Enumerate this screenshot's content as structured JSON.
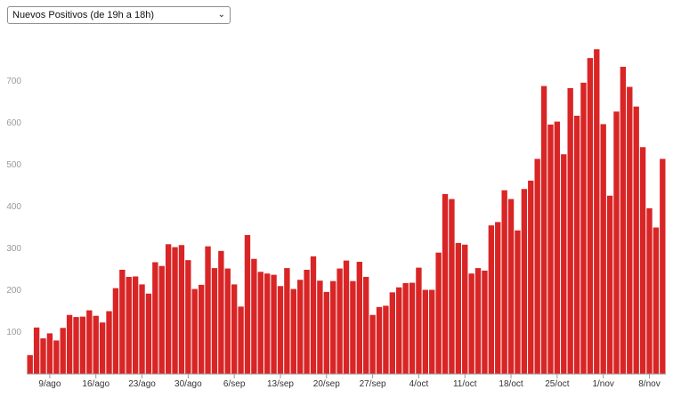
{
  "selector": {
    "value": "Nuevos Positivos (de 19h a 18h)",
    "arrow": "⌄"
  },
  "chart_data": {
    "type": "bar",
    "title": "",
    "xlabel": "",
    "ylabel": "",
    "ylim": [
      0,
      800
    ],
    "yticks": [
      100,
      200,
      300,
      400,
      500,
      600,
      700
    ],
    "grid": false,
    "bar_color": "#d92525",
    "x_tick_labels": [
      {
        "label": "9/ago",
        "index": 3
      },
      {
        "label": "16/ago",
        "index": 10
      },
      {
        "label": "23/ago",
        "index": 17
      },
      {
        "label": "30/ago",
        "index": 24
      },
      {
        "label": "6/sep",
        "index": 31
      },
      {
        "label": "13/sep",
        "index": 38
      },
      {
        "label": "20/sep",
        "index": 45
      },
      {
        "label": "27/sep",
        "index": 52
      },
      {
        "label": "4/oct",
        "index": 59
      },
      {
        "label": "11/oct",
        "index": 66
      },
      {
        "label": "18/oct",
        "index": 73
      },
      {
        "label": "25/oct",
        "index": 80
      },
      {
        "label": "1/nov",
        "index": 87
      },
      {
        "label": "8/nov",
        "index": 94
      }
    ],
    "values": [
      45,
      111,
      85,
      97,
      80,
      110,
      141,
      136,
      137,
      152,
      139,
      123,
      150,
      205,
      249,
      232,
      233,
      214,
      192,
      267,
      258,
      310,
      303,
      308,
      272,
      203,
      213,
      305,
      253,
      294,
      252,
      214,
      161,
      332,
      275,
      244,
      240,
      237,
      210,
      253,
      203,
      225,
      249,
      281,
      223,
      196,
      222,
      252,
      271,
      222,
      268,
      232,
      141,
      160,
      163,
      195,
      207,
      217,
      218,
      254,
      201,
      201,
      290,
      430,
      418,
      313,
      309,
      240,
      253,
      247,
      355,
      363,
      439,
      418,
      343,
      442,
      462,
      514,
      688,
      596,
      603,
      525,
      683,
      617,
      696,
      755,
      776,
      597,
      426,
      627,
      734,
      686,
      639,
      542,
      396,
      350,
      514
    ]
  }
}
